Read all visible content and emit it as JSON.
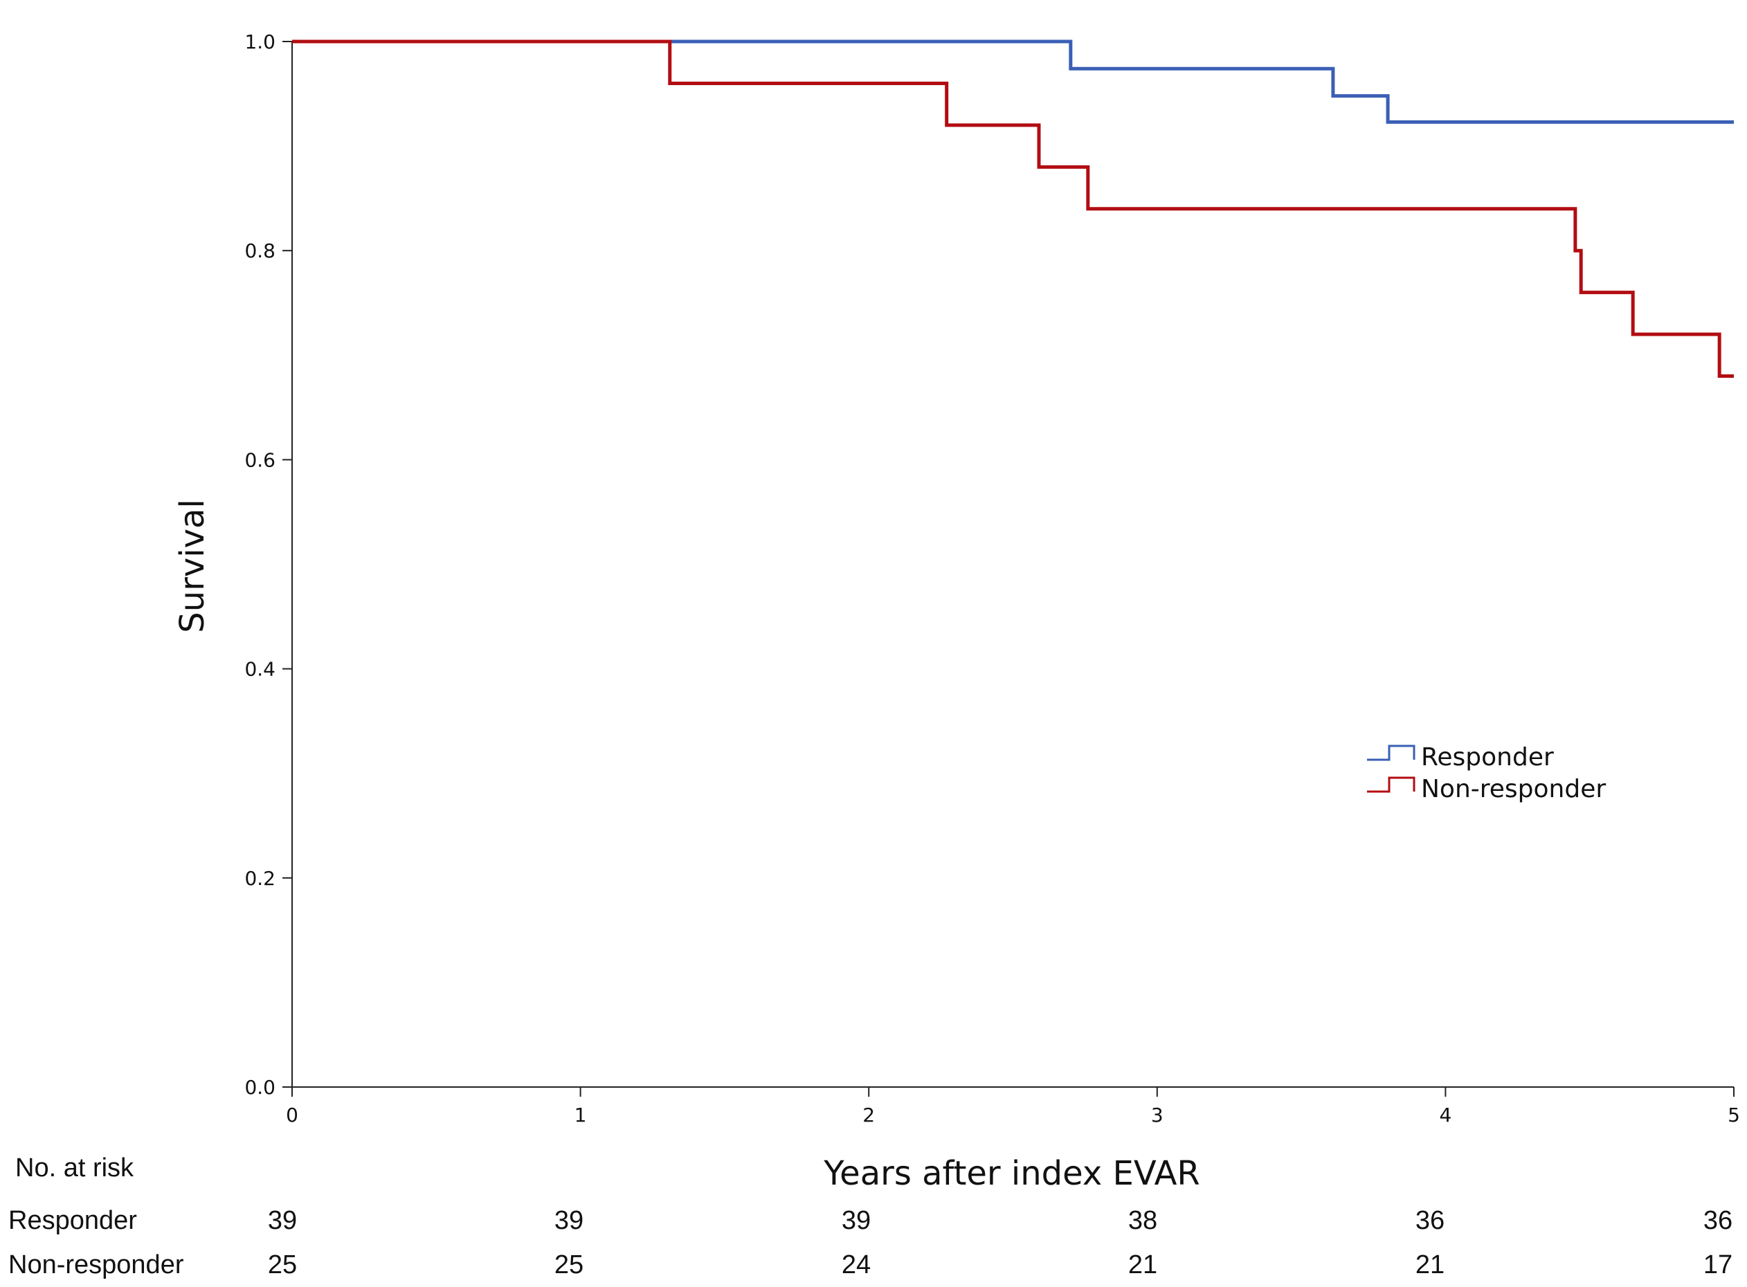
{
  "chart_data": {
    "type": "line",
    "title": "",
    "xlabel": "Years after index EVAR",
    "ylabel": "Survival",
    "xlim": [
      0,
      5
    ],
    "ylim": [
      0,
      1.0
    ],
    "x_ticks": [
      "0",
      "1",
      "2",
      "3",
      "4",
      "5"
    ],
    "y_ticks": [
      "0.0",
      "0.2",
      "0.4",
      "0.6",
      "0.8",
      "1.0"
    ],
    "legend_position": "right-middle",
    "series": [
      {
        "name": "Responder",
        "color": "#3a5fb5",
        "steps": [
          [
            0,
            1.0
          ],
          [
            2.7,
            0.974
          ],
          [
            3.61,
            0.948
          ],
          [
            3.8,
            0.923
          ],
          [
            5.0,
            0.923
          ]
        ]
      },
      {
        "name": "Non-responder",
        "color": "#b20d12",
        "steps": [
          [
            0,
            1.0
          ],
          [
            1.31,
            0.96
          ],
          [
            2.27,
            0.92
          ],
          [
            2.59,
            0.88
          ],
          [
            2.76,
            0.84
          ],
          [
            4.45,
            0.8
          ],
          [
            4.47,
            0.76
          ],
          [
            4.65,
            0.72
          ],
          [
            4.95,
            0.68
          ],
          [
            5.0,
            0.68
          ]
        ]
      }
    ]
  },
  "risk_table": {
    "title": "No. at risk",
    "rows": [
      {
        "label": "Responder",
        "values": [
          "39",
          "39",
          "39",
          "38",
          "36",
          "36"
        ]
      },
      {
        "label": "Non-responder",
        "values": [
          "25",
          "25",
          "24",
          "21",
          "21",
          "17"
        ]
      }
    ]
  }
}
